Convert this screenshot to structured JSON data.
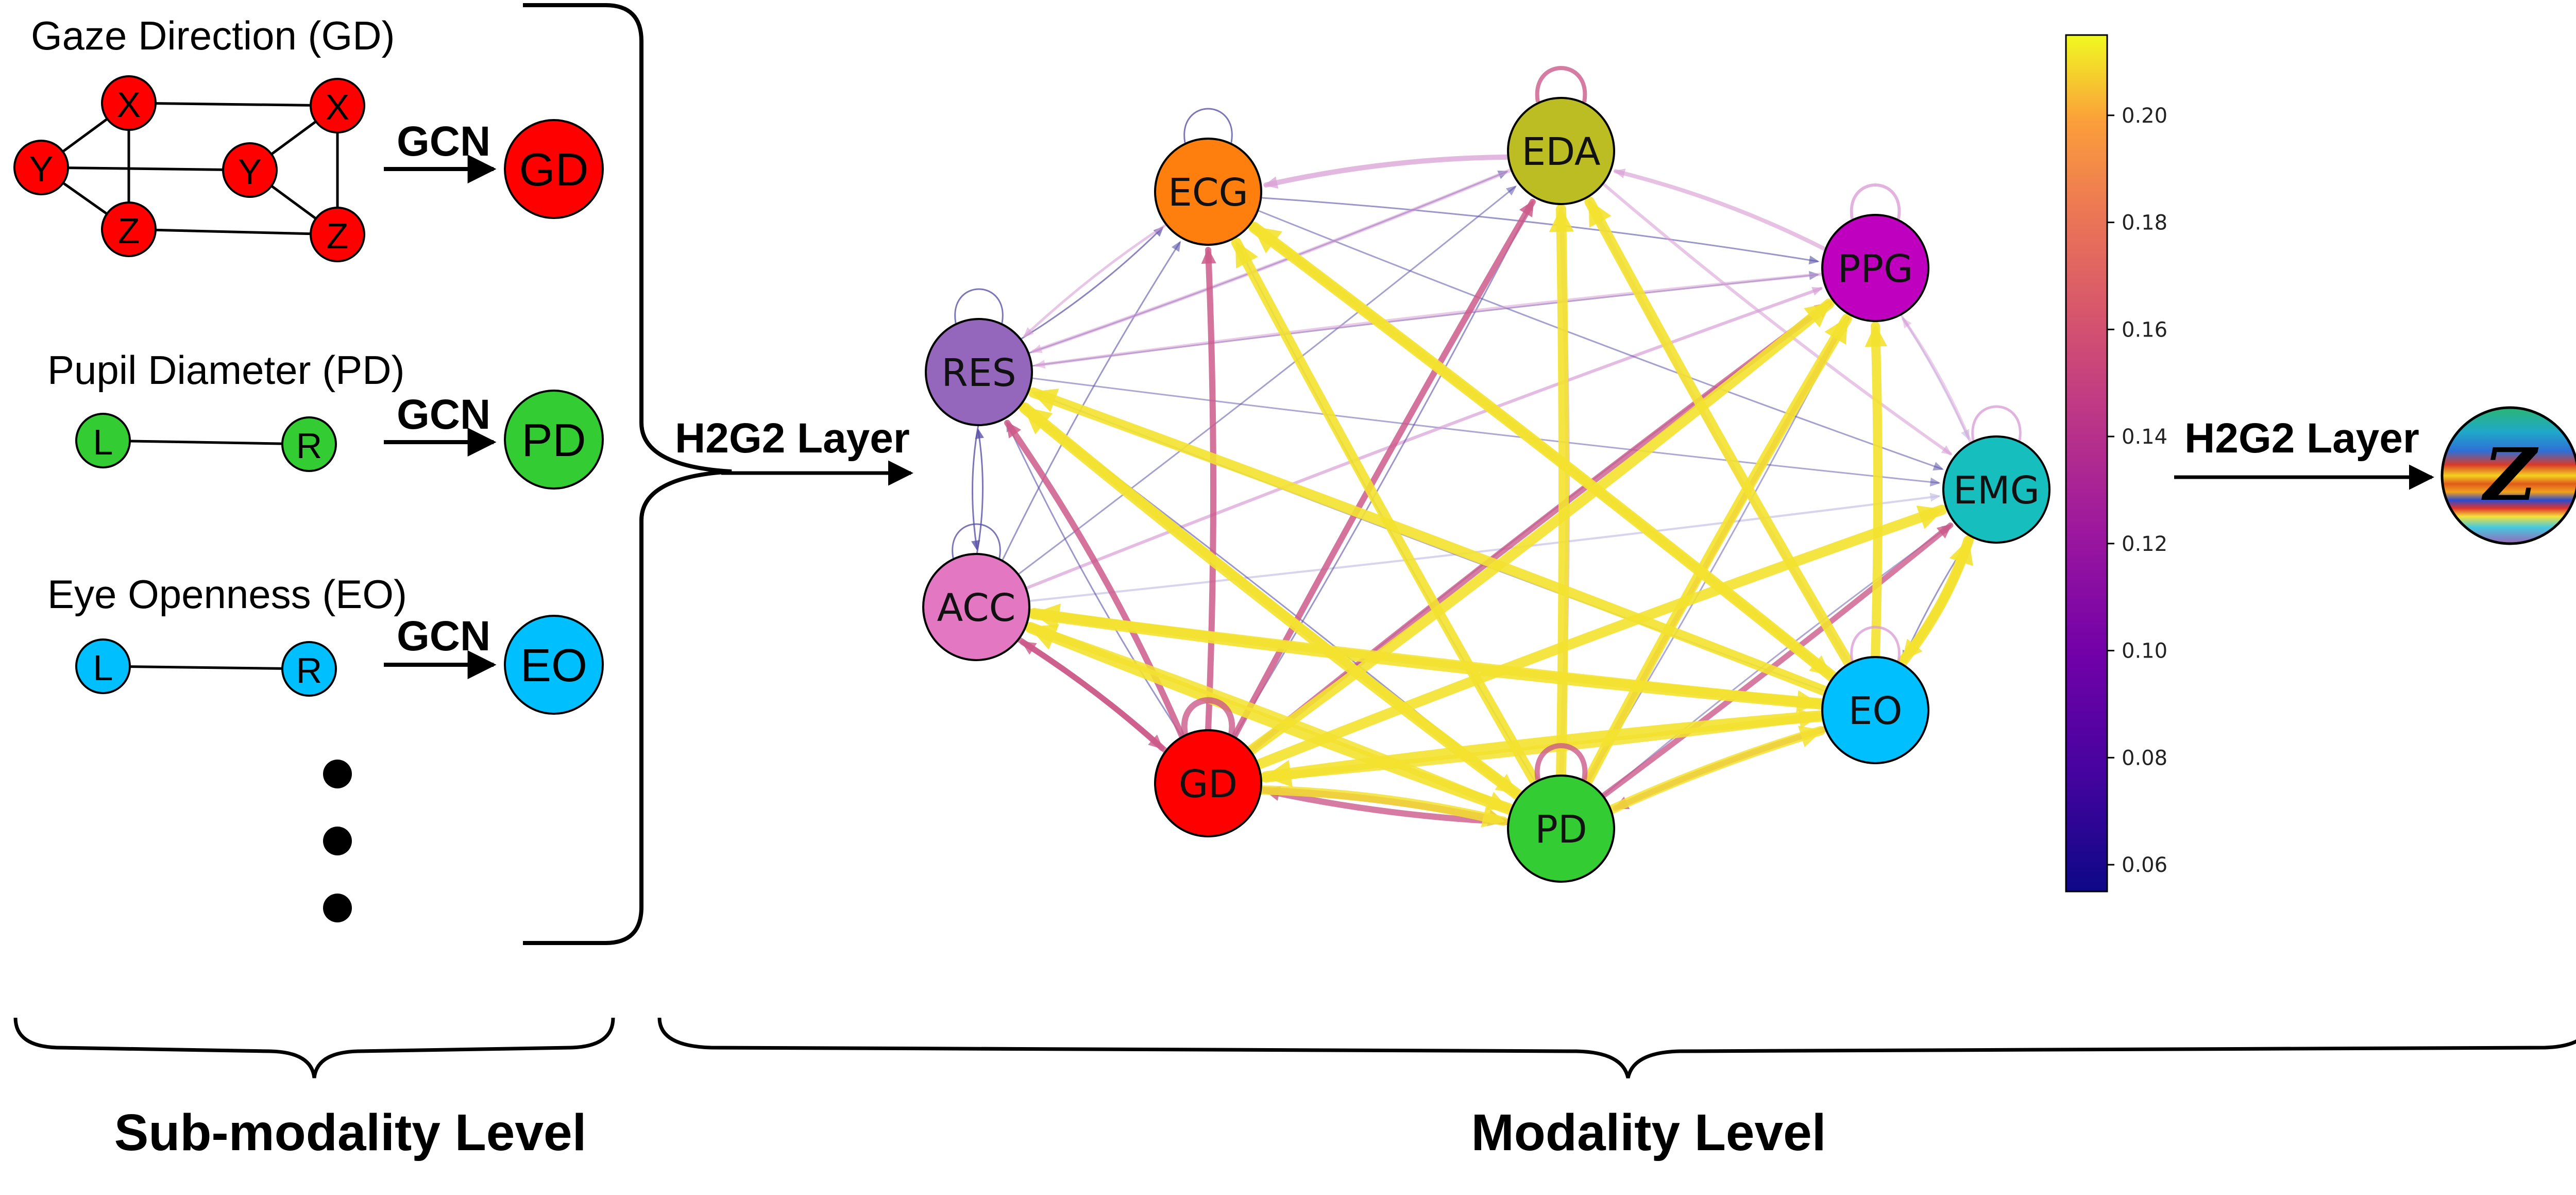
{
  "submodality": {
    "gaze": {
      "title": "Gaze Direction (GD)",
      "nodes": [
        "X",
        "Y",
        "Z",
        "Y",
        "X",
        "Z"
      ],
      "out": "GD",
      "color": "#ff0000"
    },
    "pupil": {
      "title": "Pupil Diameter (PD)",
      "nodes": [
        "L",
        "R"
      ],
      "out": "PD",
      "color": "#33cc33"
    },
    "eye": {
      "title": "Eye Openness (EO)",
      "nodes": [
        "L",
        "R"
      ],
      "out": "EO",
      "color": "#00bfff"
    },
    "gcn_label": "GCN"
  },
  "h2g2_left": "H2G2 Layer",
  "h2g2_right": "H2G2 Layer",
  "z_label": "Z",
  "modality_graph": {
    "nodes": [
      {
        "id": "EDA",
        "color": "#bcbd22"
      },
      {
        "id": "ECG",
        "color": "#ff7f0e"
      },
      {
        "id": "PPG",
        "color": "#bf00bf"
      },
      {
        "id": "RES",
        "color": "#9467bd"
      },
      {
        "id": "EMG",
        "color": "#17bebe"
      },
      {
        "id": "ACC",
        "color": "#e377c2"
      },
      {
        "id": "EO",
        "color": "#00bfff"
      },
      {
        "id": "GD",
        "color": "#ff0000"
      },
      {
        "id": "PD",
        "color": "#33cc33"
      }
    ],
    "colormap": "plasma",
    "colorbar_ticks": [
      "0.20",
      "0.18",
      "0.16",
      "0.14",
      "0.12",
      "0.10",
      "0.08",
      "0.06"
    ],
    "colorbar_range": [
      0.055,
      0.215
    ]
  },
  "bottom": {
    "left_label": "Sub-modality Level",
    "right_label": "Modality Level"
  }
}
